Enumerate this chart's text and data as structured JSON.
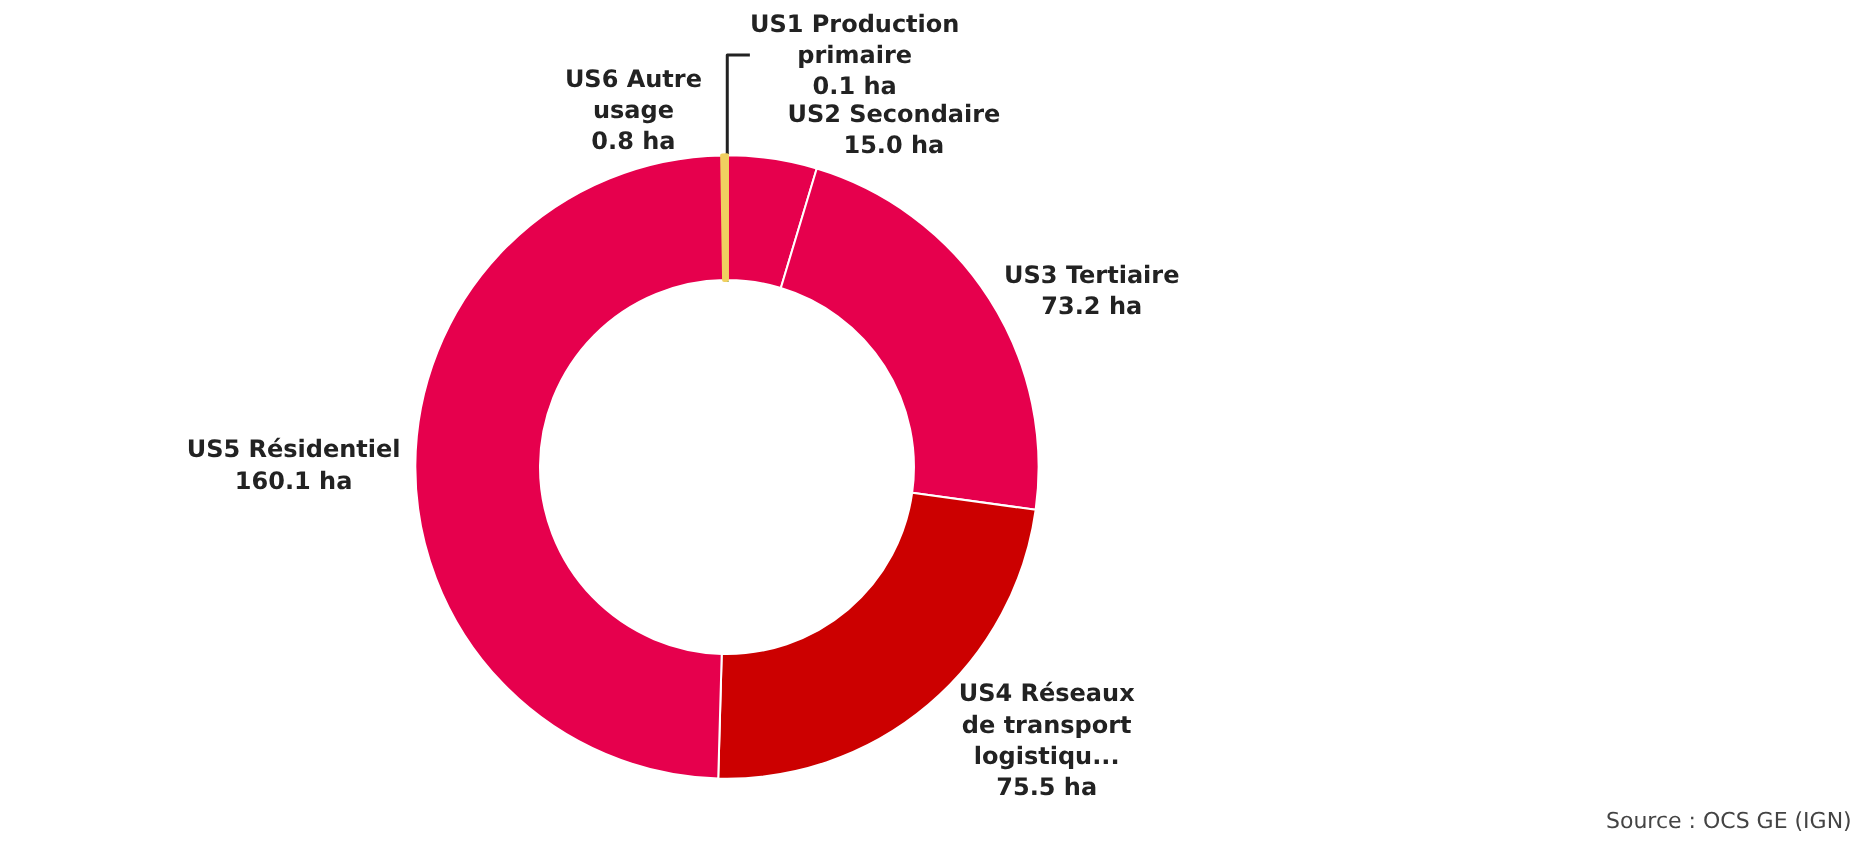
{
  "chart_data": {
    "type": "donut",
    "categories": [
      "US1 Production\nprimaire",
      "US2 Secondaire",
      "US3 Tertiaire",
      "US4 Réseaux\nde transport\nlogistiqu...",
      "US5 Résidentiel",
      "US6 Autre\nusage"
    ],
    "values": [
      0.1,
      15.0,
      73.2,
      75.5,
      160.1,
      0.8
    ],
    "value_labels": [
      "0.1 ha",
      "15.0 ha",
      "73.2 ha",
      "75.5 ha",
      "160.1 ha",
      "0.8 ha"
    ],
    "colors": [
      "#2e8b57",
      "#e6004d",
      "#e6004d",
      "#cc0000",
      "#e6004d",
      "#f0d060"
    ],
    "legend": false,
    "annotations": [
      "Source : OCS GE (IGN)"
    ]
  }
}
